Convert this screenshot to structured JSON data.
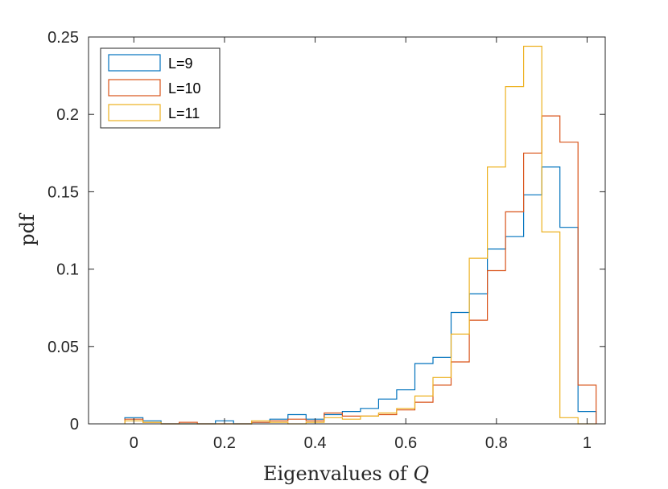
{
  "chart_data": {
    "type": "histogram",
    "title": "",
    "xlabel": "Eigenvalues of",
    "xlabel_symbol": "Q",
    "ylabel": "pdf",
    "xlim": [
      -0.1,
      1.04
    ],
    "ylim": [
      0,
      0.25
    ],
    "xticks": [
      0,
      0.2,
      0.4,
      0.6,
      0.8,
      1
    ],
    "xtick_labels": [
      "0",
      "0.2",
      "0.4",
      "0.6",
      "0.8",
      "1"
    ],
    "yticks": [
      0,
      0.05,
      0.1,
      0.15,
      0.2,
      0.25
    ],
    "ytick_labels": [
      "0",
      "0.05",
      "0.1",
      "0.15",
      "0.2",
      "0.25"
    ],
    "grid": false,
    "legend_position": "top-left",
    "bin_edges": [
      -0.02,
      0.02,
      0.06,
      0.1,
      0.14,
      0.18,
      0.22,
      0.26,
      0.3,
      0.34,
      0.38,
      0.42,
      0.46,
      0.5,
      0.54,
      0.58,
      0.62,
      0.66,
      0.7,
      0.74,
      0.78,
      0.82,
      0.86,
      0.9,
      0.94,
      0.98,
      1.02
    ],
    "series": [
      {
        "name": "L=9",
        "color": "#0072BD",
        "values": [
          0.004,
          0.002,
          0.0,
          0.0,
          0.0,
          0.002,
          0.0,
          0.001,
          0.003,
          0.006,
          0.003,
          0.006,
          0.008,
          0.01,
          0.016,
          0.022,
          0.039,
          0.043,
          0.072,
          0.084,
          0.113,
          0.121,
          0.148,
          0.166,
          0.127,
          0.008
        ]
      },
      {
        "name": "L=10",
        "color": "#D95319",
        "values": [
          0.003,
          0.001,
          0.0,
          0.001,
          0.0,
          0.0,
          0.0,
          0.001,
          0.002,
          0.003,
          0.002,
          0.007,
          0.005,
          0.005,
          0.006,
          0.009,
          0.014,
          0.025,
          0.04,
          0.067,
          0.099,
          0.137,
          0.175,
          0.199,
          0.182,
          0.025
        ]
      },
      {
        "name": "L=11",
        "color": "#EDB120",
        "values": [
          0.002,
          0.001,
          0.0,
          0.0,
          0.0,
          0.0,
          0.0,
          0.002,
          0.001,
          0.0,
          0.001,
          0.004,
          0.003,
          0.005,
          0.007,
          0.01,
          0.018,
          0.03,
          0.058,
          0.107,
          0.166,
          0.218,
          0.244,
          0.124,
          0.004,
          0.0
        ]
      }
    ]
  }
}
